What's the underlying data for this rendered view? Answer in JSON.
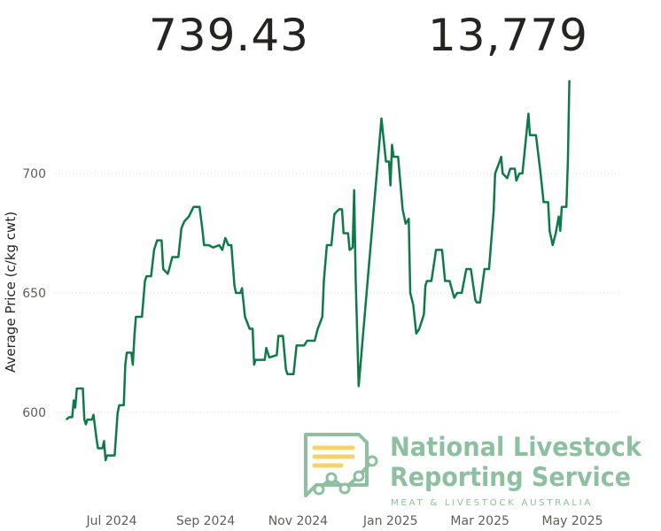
{
  "kpis": {
    "average_price": "739.43",
    "head_count": "13,779"
  },
  "logo": {
    "line1": "National Livestock",
    "line2": "Reporting Service",
    "tagline": "MEAT & LIVESTOCK AUSTRALIA",
    "color": "#8dbfa0",
    "accent": "#f3d36b"
  },
  "chart_data": {
    "type": "line",
    "title": "",
    "xlabel": "",
    "ylabel": "Average Price (c/kg cwt)",
    "ylim": [
      578,
      740
    ],
    "yticks": [
      600,
      650,
      700
    ],
    "grid": true,
    "line_color": "#0e7a4a",
    "xticks": [
      {
        "label": "Jul 2024",
        "date": "2024-07-01"
      },
      {
        "label": "Sep 2024",
        "date": "2024-09-01"
      },
      {
        "label": "Nov 2024",
        "date": "2024-11-01"
      },
      {
        "label": "Jan 2025",
        "date": "2025-01-01"
      },
      {
        "label": "Mar 2025",
        "date": "2025-03-01"
      },
      {
        "label": "May 2025",
        "date": "2025-05-01"
      }
    ],
    "series": [
      {
        "points": [
          [
            "2024-06-01",
            597
          ],
          [
            "2024-06-03",
            598
          ],
          [
            "2024-06-05",
            598
          ],
          [
            "2024-06-06",
            605
          ],
          [
            "2024-06-07",
            602
          ],
          [
            "2024-06-08",
            610
          ],
          [
            "2024-06-12",
            610
          ],
          [
            "2024-06-13",
            597
          ],
          [
            "2024-06-14",
            595
          ],
          [
            "2024-06-15",
            597
          ],
          [
            "2024-06-18",
            597
          ],
          [
            "2024-06-19",
            599
          ],
          [
            "2024-06-21",
            589
          ],
          [
            "2024-06-22",
            585
          ],
          [
            "2024-06-25",
            585
          ],
          [
            "2024-06-26",
            588
          ],
          [
            "2024-06-27",
            580
          ],
          [
            "2024-06-28",
            582
          ],
          [
            "2024-07-03",
            582
          ],
          [
            "2024-07-05",
            600
          ],
          [
            "2024-07-06",
            603
          ],
          [
            "2024-07-09",
            603
          ],
          [
            "2024-07-10",
            620
          ],
          [
            "2024-07-11",
            625
          ],
          [
            "2024-07-14",
            625
          ],
          [
            "2024-07-15",
            620
          ],
          [
            "2024-07-16",
            632
          ],
          [
            "2024-07-17",
            640
          ],
          [
            "2024-07-21",
            640
          ],
          [
            "2024-07-23",
            655
          ],
          [
            "2024-07-24",
            657
          ],
          [
            "2024-07-27",
            657
          ],
          [
            "2024-07-29",
            668
          ],
          [
            "2024-07-31",
            672
          ],
          [
            "2024-08-03",
            672
          ],
          [
            "2024-08-04",
            660
          ],
          [
            "2024-08-07",
            658
          ],
          [
            "2024-08-08",
            660
          ],
          [
            "2024-08-10",
            665
          ],
          [
            "2024-08-14",
            665
          ],
          [
            "2024-08-16",
            677
          ],
          [
            "2024-08-18",
            680
          ],
          [
            "2024-08-21",
            682
          ],
          [
            "2024-08-24",
            686
          ],
          [
            "2024-08-28",
            686
          ],
          [
            "2024-08-30",
            676
          ],
          [
            "2024-08-31",
            670
          ],
          [
            "2024-09-03",
            670
          ],
          [
            "2024-09-06",
            669
          ],
          [
            "2024-09-10",
            670
          ],
          [
            "2024-09-12",
            668
          ],
          [
            "2024-09-14",
            673
          ],
          [
            "2024-09-16",
            670
          ],
          [
            "2024-09-18",
            670
          ],
          [
            "2024-09-20",
            653
          ],
          [
            "2024-09-21",
            650
          ],
          [
            "2024-09-24",
            650
          ],
          [
            "2024-09-25",
            652
          ],
          [
            "2024-09-27",
            640
          ],
          [
            "2024-09-30",
            635
          ],
          [
            "2024-10-02",
            635
          ],
          [
            "2024-10-03",
            620
          ],
          [
            "2024-10-04",
            622
          ],
          [
            "2024-10-10",
            622
          ],
          [
            "2024-10-11",
            627
          ],
          [
            "2024-10-13",
            623
          ],
          [
            "2024-10-18",
            624
          ],
          [
            "2024-10-19",
            632
          ],
          [
            "2024-10-22",
            632
          ],
          [
            "2024-10-24",
            618
          ],
          [
            "2024-10-25",
            616
          ],
          [
            "2024-10-29",
            616
          ],
          [
            "2024-10-31",
            628
          ],
          [
            "2024-11-05",
            628
          ],
          [
            "2024-11-07",
            630
          ],
          [
            "2024-11-12",
            630
          ],
          [
            "2024-11-14",
            635
          ],
          [
            "2024-11-17",
            640
          ],
          [
            "2024-11-18",
            655
          ],
          [
            "2024-11-20",
            670
          ],
          [
            "2024-11-23",
            670
          ],
          [
            "2024-11-25",
            683
          ],
          [
            "2024-11-28",
            685
          ],
          [
            "2024-11-30",
            685
          ],
          [
            "2024-12-01",
            675
          ],
          [
            "2024-12-04",
            675
          ],
          [
            "2024-12-05",
            668
          ],
          [
            "2024-12-07",
            669
          ],
          [
            "2024-12-08",
            693
          ],
          [
            "2024-12-09",
            656
          ],
          [
            "2024-12-11",
            611
          ],
          [
            "2024-12-26",
            723
          ],
          [
            "2024-12-29",
            705
          ],
          [
            "2024-12-31",
            705
          ],
          [
            "2025-01-01",
            695
          ],
          [
            "2025-01-02",
            712
          ],
          [
            "2025-01-03",
            707
          ],
          [
            "2025-01-06",
            707
          ],
          [
            "2025-01-09",
            685
          ],
          [
            "2025-01-11",
            679
          ],
          [
            "2025-01-13",
            681
          ],
          [
            "2025-01-14",
            650
          ],
          [
            "2025-01-16",
            645
          ],
          [
            "2025-01-18",
            633
          ],
          [
            "2025-01-20",
            635
          ],
          [
            "2025-01-23",
            641
          ],
          [
            "2025-01-24",
            653
          ],
          [
            "2025-01-25",
            655
          ],
          [
            "2025-01-28",
            655
          ],
          [
            "2025-01-31",
            668
          ],
          [
            "2025-02-04",
            668
          ],
          [
            "2025-02-06",
            655
          ],
          [
            "2025-02-09",
            655
          ],
          [
            "2025-02-12",
            648
          ],
          [
            "2025-02-14",
            650
          ],
          [
            "2025-02-17",
            650
          ],
          [
            "2025-02-20",
            660
          ],
          [
            "2025-02-23",
            660
          ],
          [
            "2025-02-26",
            647
          ],
          [
            "2025-02-27",
            646
          ],
          [
            "2025-03-01",
            646
          ],
          [
            "2025-03-04",
            660
          ],
          [
            "2025-03-07",
            660
          ],
          [
            "2025-03-10",
            684
          ],
          [
            "2025-03-11",
            700
          ],
          [
            "2025-03-14",
            705
          ],
          [
            "2025-03-15",
            707
          ],
          [
            "2025-03-16",
            700
          ],
          [
            "2025-03-19",
            698
          ],
          [
            "2025-03-21",
            702
          ],
          [
            "2025-03-24",
            702
          ],
          [
            "2025-03-25",
            697
          ],
          [
            "2025-03-27",
            700
          ],
          [
            "2025-03-29",
            700
          ],
          [
            "2025-04-02",
            725
          ],
          [
            "2025-04-03",
            716
          ],
          [
            "2025-04-07",
            716
          ],
          [
            "2025-04-10",
            700
          ],
          [
            "2025-04-12",
            688
          ],
          [
            "2025-04-15",
            688
          ],
          [
            "2025-04-16",
            676
          ],
          [
            "2025-04-18",
            670
          ],
          [
            "2025-04-20",
            675
          ],
          [
            "2025-04-22",
            682
          ],
          [
            "2025-04-23",
            676
          ],
          [
            "2025-04-24",
            686
          ],
          [
            "2025-04-27",
            686
          ],
          [
            "2025-04-28",
            705
          ],
          [
            "2025-04-29",
            739
          ]
        ]
      }
    ]
  }
}
